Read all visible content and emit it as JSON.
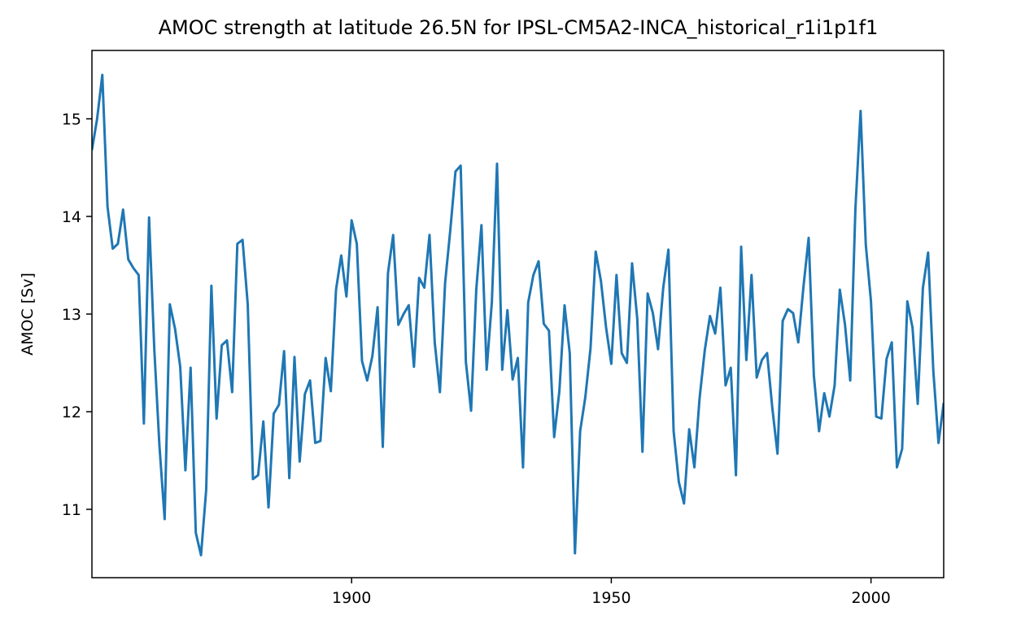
{
  "chart_data": {
    "type": "line",
    "title": "AMOC strength at latitude 26.5N for IPSL-CM5A2-INCA_historical_r1i1p1f1",
    "xlabel": "",
    "ylabel": "AMOC [Sv]",
    "xlim": [
      1850,
      2014
    ],
    "ylim": [
      10.3,
      15.7
    ],
    "grid": false,
    "line_color": "#1f77b4",
    "x_ticks": [
      1900,
      1950,
      2000
    ],
    "y_ticks": [
      11,
      12,
      13,
      14,
      15
    ],
    "x_tick_labels": [
      "1900",
      "1950",
      "2000"
    ],
    "y_tick_labels": [
      "11",
      "12",
      "13",
      "14",
      "15"
    ],
    "series": [
      {
        "x_start": 1850,
        "values": [
          14.68,
          15.0,
          15.45,
          14.1,
          13.67,
          13.72,
          14.07,
          13.56,
          13.47,
          13.4,
          11.88,
          13.99,
          12.65,
          11.65,
          10.9,
          13.1,
          12.85,
          12.46,
          11.4,
          12.45,
          10.76,
          10.53,
          11.2,
          13.29,
          11.93,
          12.68,
          12.73,
          12.2,
          13.72,
          13.76,
          13.1,
          11.31,
          11.35,
          11.9,
          11.02,
          11.98,
          12.07,
          12.62,
          11.32,
          12.56,
          11.49,
          12.18,
          12.32,
          11.68,
          11.7,
          12.55,
          12.21,
          13.25,
          13.6,
          13.18,
          13.96,
          13.72,
          12.52,
          12.32,
          12.57,
          13.07,
          11.64,
          13.42,
          13.81,
          12.89,
          13.0,
          13.09,
          12.46,
          13.37,
          13.27,
          13.81,
          12.71,
          12.2,
          13.32,
          13.86,
          14.46,
          14.52,
          12.51,
          12.01,
          13.25,
          13.91,
          12.43,
          13.12,
          14.54,
          12.43,
          13.04,
          12.33,
          12.55,
          11.43,
          13.12,
          13.4,
          13.54,
          12.9,
          12.83,
          11.74,
          12.21,
          13.09,
          12.6,
          10.55,
          11.8,
          12.15,
          12.65,
          13.64,
          13.34,
          12.86,
          12.49,
          13.4,
          12.6,
          12.5,
          13.52,
          12.95,
          11.59,
          13.21,
          13.01,
          12.64,
          13.27,
          13.66,
          11.8,
          11.28,
          11.06,
          11.82,
          11.43,
          12.14,
          12.63,
          12.98,
          12.8,
          13.27,
          12.27,
          12.45,
          11.35,
          13.69,
          12.53,
          13.4,
          12.35,
          12.53,
          12.6,
          12.04,
          11.57,
          12.93,
          13.05,
          13.01,
          12.71,
          13.28,
          13.78,
          12.37,
          11.8,
          12.19,
          11.95,
          12.27,
          13.25,
          12.89,
          12.32,
          14.08,
          15.08,
          13.71,
          13.13,
          11.95,
          11.93,
          12.54,
          12.71,
          11.43,
          11.62,
          13.13,
          12.86,
          12.08,
          13.27,
          13.63,
          12.42,
          11.68,
          12.09
        ]
      }
    ]
  }
}
